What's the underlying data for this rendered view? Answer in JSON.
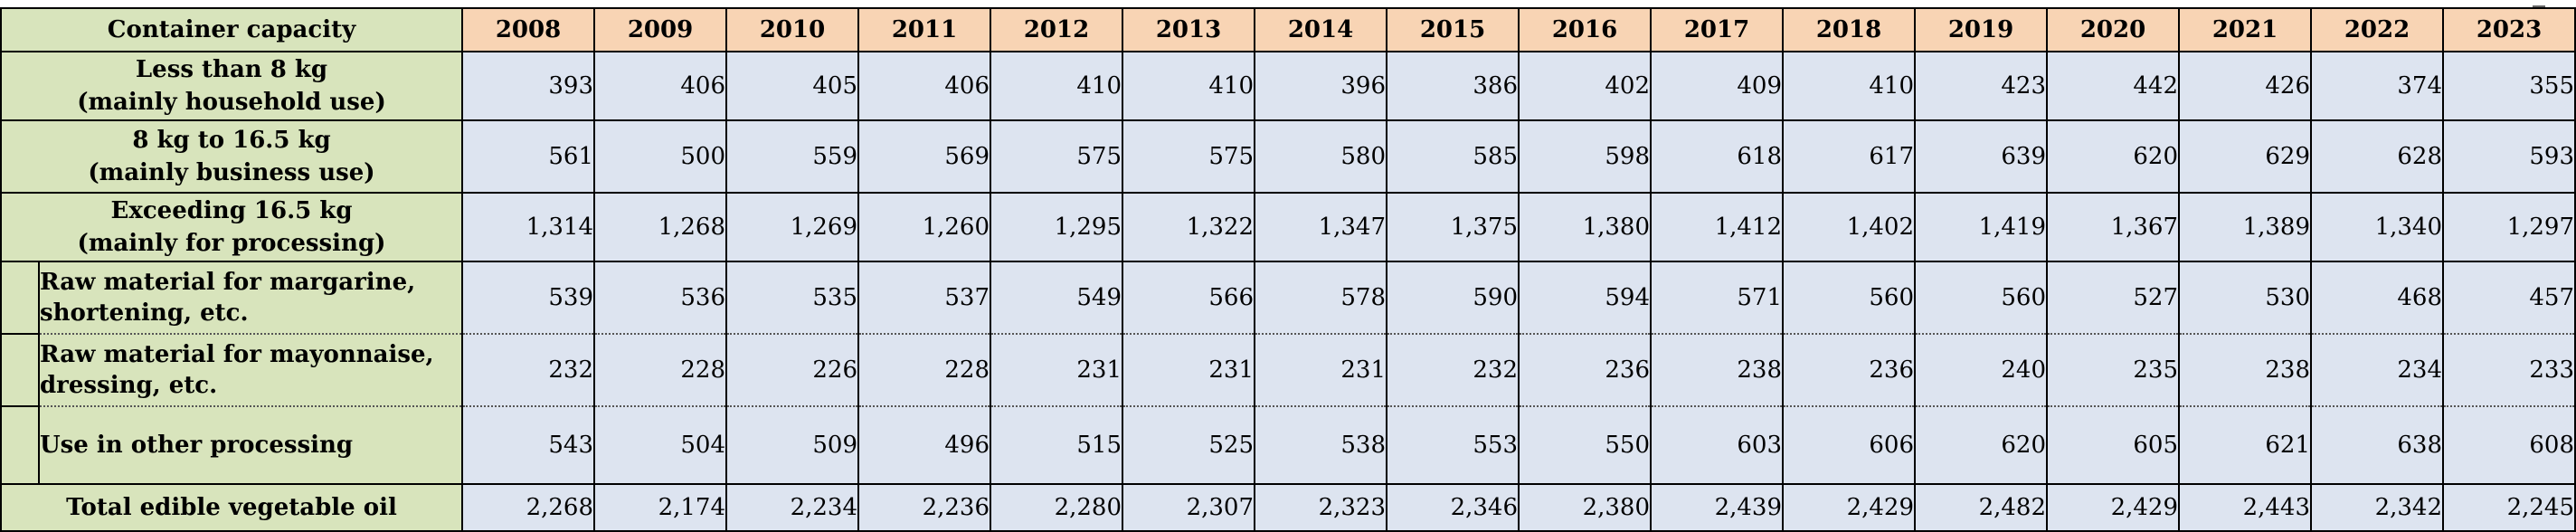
{
  "header": {
    "capacity_label": "Container capacity",
    "years": [
      "2008",
      "2009",
      "2010",
      "2011",
      "2012",
      "2013",
      "2014",
      "2015",
      "2016",
      "2017",
      "2018",
      "2019",
      "2020",
      "2021",
      "2022",
      "2023"
    ]
  },
  "rows": {
    "household": {
      "line1": "Less than 8 kg",
      "line2": "(mainly household use)",
      "values": [
        "393",
        "406",
        "405",
        "406",
        "410",
        "410",
        "396",
        "386",
        "402",
        "409",
        "410",
        "423",
        "442",
        "426",
        "374",
        "355"
      ]
    },
    "business": {
      "line1": "8 kg to 16.5 kg",
      "line2": "(mainly business use)",
      "values": [
        "561",
        "500",
        "559",
        "569",
        "575",
        "575",
        "580",
        "585",
        "598",
        "618",
        "617",
        "639",
        "620",
        "629",
        "628",
        "593"
      ]
    },
    "processing": {
      "line1": "Exceeding 16.5 kg",
      "line2": "(mainly for processing)",
      "values": [
        "1,314",
        "1,268",
        "1,269",
        "1,260",
        "1,295",
        "1,322",
        "1,347",
        "1,375",
        "1,380",
        "1,412",
        "1,402",
        "1,419",
        "1,367",
        "1,389",
        "1,340",
        "1,297"
      ]
    },
    "margarine": {
      "line1": "Raw material for margarine,",
      "line2": "shortening, etc.",
      "values": [
        "539",
        "536",
        "535",
        "537",
        "549",
        "566",
        "578",
        "590",
        "594",
        "571",
        "560",
        "560",
        "527",
        "530",
        "468",
        "457"
      ]
    },
    "mayonnaise": {
      "line1": "Raw material for mayonnaise,",
      "line2": "dressing, etc.",
      "values": [
        "232",
        "228",
        "226",
        "228",
        "231",
        "231",
        "231",
        "232",
        "236",
        "238",
        "236",
        "240",
        "235",
        "238",
        "234",
        "233"
      ]
    },
    "other": {
      "label": "Use in other processing",
      "values": [
        "543",
        "504",
        "509",
        "496",
        "515",
        "525",
        "538",
        "553",
        "550",
        "603",
        "606",
        "620",
        "605",
        "621",
        "638",
        "608"
      ]
    },
    "total": {
      "label": "Total edible vegetable oil",
      "values": [
        "2,268",
        "2,174",
        "2,234",
        "2,236",
        "2,280",
        "2,307",
        "2,323",
        "2,346",
        "2,380",
        "2,439",
        "2,429",
        "2,482",
        "2,429",
        "2,443",
        "2,342",
        "2,245"
      ]
    }
  },
  "colors": {
    "label_bg": "#d8e4bc",
    "header_bg": "#f8d4b4",
    "value_bg": "#dde4f0"
  }
}
